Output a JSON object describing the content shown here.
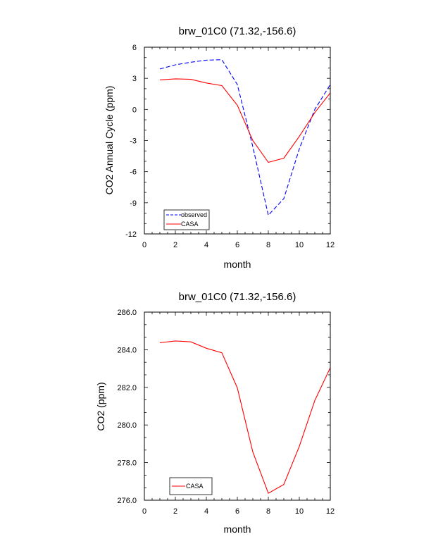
{
  "chart_data": [
    {
      "type": "line",
      "title": "brw_01C0 (71.32,-156.6)",
      "xlabel": "month",
      "ylabel": "CO2 Annual Cycle (ppm)",
      "xlim": [
        0,
        12
      ],
      "ylim": [
        -12,
        6
      ],
      "xticks": [
        0,
        2,
        4,
        6,
        8,
        10,
        12
      ],
      "yticks": [
        -12,
        -9,
        -6,
        -3,
        0,
        3,
        6
      ],
      "ytick_labels": [
        "-12",
        "-9",
        "-6",
        "-3",
        "0",
        "3",
        "6"
      ],
      "x": [
        1,
        2,
        3,
        4,
        5,
        6,
        7,
        8,
        9,
        10,
        11,
        12
      ],
      "series": [
        {
          "name": "observed",
          "color": "#0000ff",
          "dash": "dashed",
          "values": [
            3.9,
            4.3,
            4.55,
            4.75,
            4.8,
            2.4,
            -3.6,
            -10.2,
            -8.6,
            -3.8,
            0.0,
            2.4
          ]
        },
        {
          "name": "CASA",
          "color": "#ff0000",
          "dash": "solid",
          "values": [
            2.85,
            2.95,
            2.9,
            2.55,
            2.3,
            0.4,
            -3.0,
            -5.1,
            -4.7,
            -2.6,
            -0.3,
            1.6
          ]
        }
      ],
      "legend": "bottom-left",
      "grid": false
    },
    {
      "type": "line",
      "title": "brw_01C0 (71.32,-156.6)",
      "xlabel": "month",
      "ylabel": "CO2 (ppm)",
      "xlim": [
        0,
        12
      ],
      "ylim": [
        276,
        286
      ],
      "xticks": [
        0,
        2,
        4,
        6,
        8,
        10,
        12
      ],
      "yticks": [
        276,
        278,
        280,
        282,
        284,
        286
      ],
      "ytick_labels": [
        "276.0",
        "278.0",
        "280.0",
        "282.0",
        "284.0",
        "286.0"
      ],
      "x": [
        1,
        2,
        3,
        4,
        5,
        6,
        7,
        8,
        9,
        10,
        11,
        12
      ],
      "series": [
        {
          "name": "CASA",
          "color": "#ff0000",
          "dash": "solid",
          "values": [
            284.37,
            284.47,
            284.42,
            284.08,
            283.84,
            281.97,
            278.56,
            276.37,
            276.84,
            278.86,
            281.3,
            283.05
          ]
        }
      ],
      "legend": "bottom-left",
      "grid": false
    }
  ]
}
